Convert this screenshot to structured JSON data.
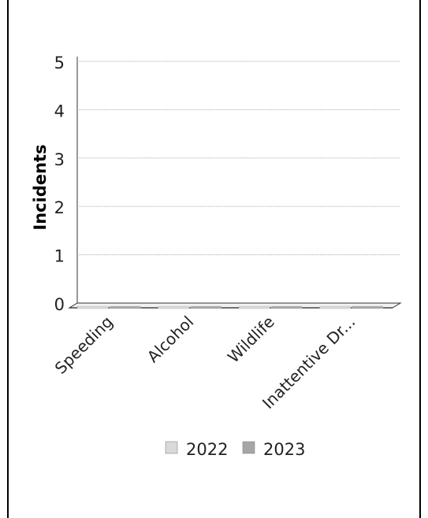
{
  "chart_data": {
    "type": "bar",
    "ylabel": "Incidents",
    "xlabel": "",
    "categories": [
      "Speeding",
      "Alcohol",
      "Wildlife",
      "Inattentive Dr..."
    ],
    "series": [
      {
        "name": "2022",
        "values": [
          0,
          0,
          0,
          0
        ]
      },
      {
        "name": "2023",
        "values": [
          0,
          0,
          0,
          0
        ]
      }
    ],
    "ylim": [
      0,
      5
    ],
    "yticks": [
      "0",
      "1",
      "2",
      "3",
      "4",
      "5"
    ],
    "grid": true,
    "legend": "bottom",
    "colors": {
      "2022": "#d9d9d9",
      "2023": "#a6a6a6"
    }
  }
}
